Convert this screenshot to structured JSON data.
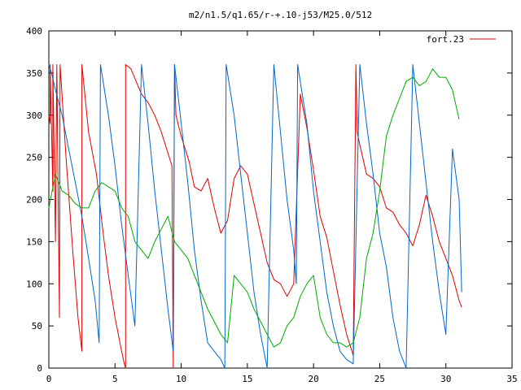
{
  "chart_data": {
    "type": "line",
    "title": "m2/n1.5/q1.65/r-+.10-j53/M25.0/512",
    "xlim": [
      0,
      35
    ],
    "ylim": [
      0,
      400
    ],
    "xticks": [
      0,
      5,
      10,
      15,
      20,
      25,
      30,
      35
    ],
    "yticks": [
      0,
      50,
      100,
      150,
      200,
      250,
      300,
      350,
      400
    ],
    "xtick_labels": [
      "0",
      "5",
      "10",
      "15",
      "20",
      "25",
      "30",
      "35"
    ],
    "ytick_labels": [
      "0",
      "50",
      "100",
      "150",
      "200",
      "250",
      "300",
      "350",
      "400"
    ],
    "legend": {
      "position": "top-right",
      "entries": [
        "fort.23"
      ]
    },
    "grid": false,
    "series": [
      {
        "name": "fort.23",
        "color": "#e00000",
        "x": [
          0.0,
          0.1,
          0.1,
          0.3,
          0.3,
          0.5,
          0.6,
          0.8,
          0.85,
          1.3,
          1.8,
          2.2,
          2.5,
          2.5,
          3.0,
          3.6,
          4.1,
          4.5,
          5.0,
          5.5,
          5.7,
          5.8,
          5.8,
          6.2,
          6.6,
          7.0,
          7.5,
          8.0,
          8.5,
          9.0,
          9.3,
          9.4,
          9.5,
          9.6,
          10.0,
          10.6,
          11.0,
          11.5,
          12.0,
          12.5,
          13.0,
          13.5,
          14.0,
          14.5,
          15.0,
          15.5,
          16.0,
          16.5,
          17.0,
          17.5,
          18.0,
          18.5,
          19.0,
          19.5,
          20.0,
          20.5,
          21.0,
          21.5,
          22.0,
          22.5,
          23.0,
          23.2,
          23.3,
          23.5,
          24.0,
          24.5,
          25.0,
          25.5,
          26.0,
          26.5,
          27.0,
          27.5,
          28.0,
          28.5,
          29.0,
          29.5,
          30.0,
          30.5,
          31.0,
          31.2
        ],
        "y": [
          300,
          290,
          360,
          210,
          360,
          150,
          360,
          60,
          360,
          250,
          140,
          60,
          20,
          360,
          280,
          230,
          160,
          110,
          60,
          20,
          5,
          0,
          360,
          355,
          340,
          325,
          315,
          300,
          280,
          255,
          240,
          0,
          360,
          300,
          275,
          245,
          215,
          210,
          225,
          190,
          160,
          175,
          225,
          240,
          230,
          195,
          160,
          125,
          105,
          100,
          85,
          100,
          325,
          285,
          235,
          180,
          155,
          115,
          75,
          40,
          15,
          360,
          280,
          265,
          230,
          225,
          215,
          190,
          185,
          170,
          160,
          145,
          170,
          205,
          180,
          150,
          130,
          110,
          80,
          72
        ]
      },
      {
        "name": "",
        "color": "#0066cc",
        "x": [
          0.0,
          0.2,
          0.5,
          1.0,
          1.5,
          2.0,
          2.5,
          3.0,
          3.5,
          3.8,
          3.9,
          4.5,
          5.0,
          5.5,
          6.0,
          6.5,
          7.0,
          7.5,
          8.0,
          8.5,
          9.0,
          9.4,
          9.5,
          10.0,
          10.5,
          11.0,
          11.5,
          12.0,
          12.5,
          13.0,
          13.3,
          13.4,
          14.0,
          14.5,
          15.0,
          15.5,
          16.0,
          16.5,
          17.0,
          17.5,
          18.0,
          18.5,
          18.7,
          18.8,
          19.5,
          20.0,
          20.5,
          21.0,
          21.5,
          22.0,
          22.5,
          23.0,
          23.5,
          24.0,
          24.5,
          25.0,
          25.5,
          26.0,
          26.5,
          27.0,
          27.5,
          28.0,
          28.5,
          29.0,
          29.5,
          30.0,
          30.5,
          31.0,
          31.2
        ],
        "y": [
          360,
          350,
          330,
          300,
          260,
          220,
          180,
          130,
          80,
          30,
          360,
          300,
          240,
          170,
          110,
          50,
          360,
          290,
          210,
          140,
          70,
          20,
          360,
          290,
          220,
          140,
          80,
          30,
          20,
          10,
          0,
          360,
          300,
          230,
          160,
          90,
          40,
          0,
          360,
          280,
          200,
          140,
          100,
          360,
          290,
          210,
          150,
          90,
          50,
          20,
          10,
          5,
          360,
          290,
          230,
          160,
          120,
          60,
          20,
          0,
          360,
          290,
          220,
          150,
          90,
          40,
          260,
          200,
          90
        ]
      },
      {
        "name": "",
        "color": "#00aa00",
        "x": [
          0.0,
          0.5,
          1.0,
          1.5,
          2.0,
          2.5,
          3.0,
          3.5,
          4.0,
          4.5,
          5.0,
          5.5,
          6.0,
          6.5,
          7.0,
          7.5,
          8.0,
          8.5,
          9.0,
          9.5,
          10.0,
          10.5,
          11.0,
          11.5,
          12.0,
          12.5,
          13.0,
          13.5,
          14.0,
          14.5,
          15.0,
          15.5,
          16.0,
          16.5,
          17.0,
          17.5,
          18.0,
          18.5,
          19.0,
          19.5,
          20.0,
          20.5,
          21.0,
          21.5,
          22.0,
          22.5,
          23.0,
          23.5,
          24.0,
          24.5,
          25.0,
          25.5,
          26.0,
          26.5,
          27.0,
          27.5,
          28.0,
          28.5,
          29.0,
          29.5,
          30.0,
          30.5,
          31.0
        ],
        "y": [
          190,
          230,
          210,
          205,
          195,
          190,
          190,
          210,
          220,
          215,
          210,
          190,
          180,
          150,
          140,
          130,
          150,
          165,
          180,
          150,
          140,
          130,
          110,
          90,
          70,
          55,
          40,
          30,
          110,
          100,
          90,
          70,
          55,
          40,
          25,
          30,
          50,
          60,
          85,
          100,
          110,
          60,
          40,
          30,
          30,
          25,
          30,
          60,
          130,
          160,
          210,
          275,
          300,
          320,
          340,
          345,
          335,
          340,
          355,
          345,
          345,
          330,
          295
        ]
      }
    ]
  }
}
